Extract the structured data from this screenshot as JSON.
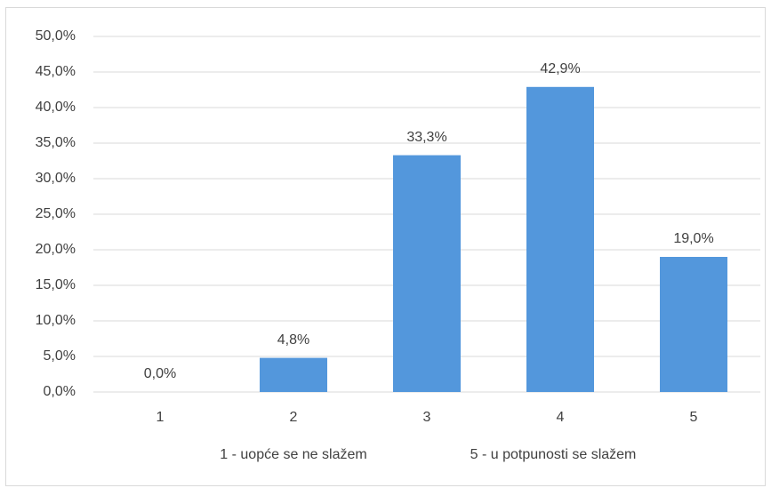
{
  "chart_data": {
    "type": "bar",
    "categories": [
      "1",
      "2",
      "3",
      "4",
      "5"
    ],
    "values": [
      0,
      4.8,
      33.3,
      42.9,
      19.0
    ],
    "value_labels": [
      "0,0%",
      "4,8%",
      "33,3%",
      "42,9%",
      "19,0%"
    ],
    "color": "#5397dc",
    "ylim": [
      0,
      50
    ],
    "yticks": [
      {
        "value": 0,
        "label": "0,0%"
      },
      {
        "value": 5,
        "label": "5,0%"
      },
      {
        "value": 10,
        "label": "10,0%"
      },
      {
        "value": 15,
        "label": "15,0%"
      },
      {
        "value": 20,
        "label": "20,0%"
      },
      {
        "value": 25,
        "label": "25,0%"
      },
      {
        "value": 30,
        "label": "30,0%"
      },
      {
        "value": 35,
        "label": "35,0%"
      },
      {
        "value": 40,
        "label": "40,0%"
      },
      {
        "value": 45,
        "label": "45,0%"
      },
      {
        "value": 50,
        "label": "50,0%"
      }
    ],
    "grid": true,
    "x_label_parts": [
      "1 - uopće se ne slažem",
      "5 - u potpunosti se slažem"
    ]
  }
}
